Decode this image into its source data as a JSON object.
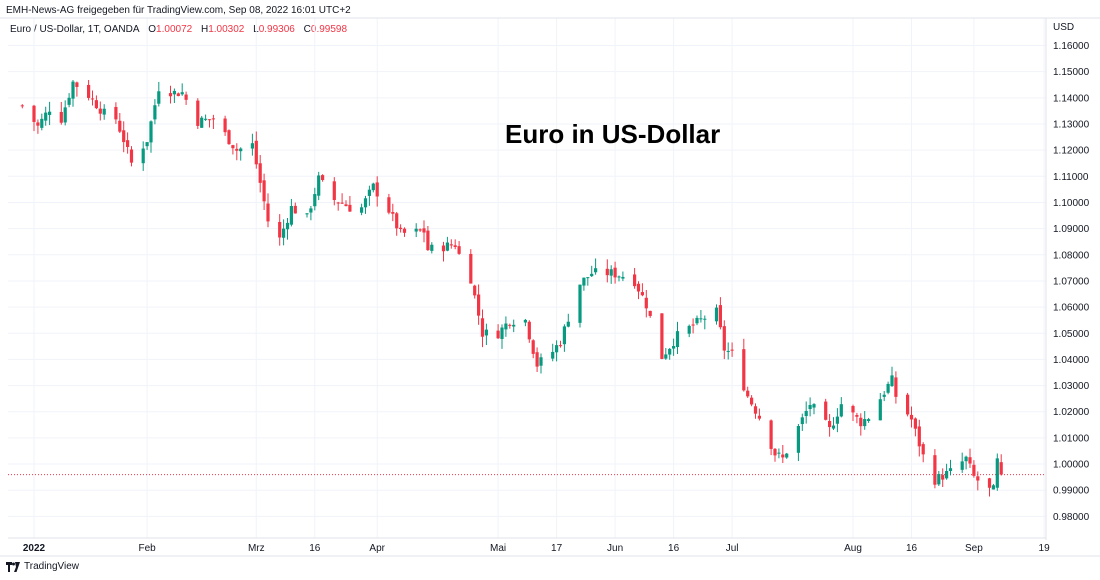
{
  "header": {
    "caption": "EMH-News-AG freigegeben für TradingView.com, Sep 08, 2022 16:01 UTC+2",
    "symbol": "Euro / US-Dollar, 1T, OANDA",
    "o_label": "O",
    "o_value": "1.00072",
    "h_label": "H",
    "h_value": "1.00302",
    "l_label": "L",
    "l_value": "0.99306",
    "c_label": "C",
    "c_value": "0.99598"
  },
  "footer": {
    "brand": "TradingView"
  },
  "colors": {
    "up": "#089981",
    "down": "#F23645",
    "grid": "#F0F3FA",
    "axis_text": "#131722",
    "price_line": "#F23645"
  },
  "icons": {
    "brand_logo": "tradingview-logo-icon"
  },
  "chart_data": {
    "type": "candlestick",
    "title": "Euro in US-Dollar",
    "currency_label": "USD",
    "y_ticks": [
      "1.16000",
      "1.15000",
      "1.14000",
      "1.13000",
      "1.12000",
      "1.11000",
      "1.10000",
      "1.09000",
      "1.08000",
      "1.07000",
      "1.06000",
      "1.05000",
      "1.04000",
      "1.03000",
      "1.02000",
      "1.01000",
      "1.00000",
      "0.99000",
      "0.98000"
    ],
    "ylim": [
      0.974,
      1.163
    ],
    "x_ticks": [
      {
        "label": "2022",
        "date": "2022-01-03",
        "bold": true
      },
      {
        "label": "Feb",
        "date": "2022-02-01",
        "bold": false
      },
      {
        "label": "Mrz",
        "date": "2022-03-01",
        "bold": false
      },
      {
        "label": "16",
        "date": "2022-03-16",
        "bold": false
      },
      {
        "label": "Apr",
        "date": "2022-04-01",
        "bold": false
      },
      {
        "label": "Mai",
        "date": "2022-05-02",
        "bold": false
      },
      {
        "label": "17",
        "date": "2022-05-17",
        "bold": false
      },
      {
        "label": "Jun",
        "date": "2022-06-01",
        "bold": false
      },
      {
        "label": "16",
        "date": "2022-06-16",
        "bold": false
      },
      {
        "label": "Jul",
        "date": "2022-07-01",
        "bold": false
      },
      {
        "label": "Aug",
        "date": "2022-08-01",
        "bold": false
      },
      {
        "label": "16",
        "date": "2022-08-16",
        "bold": false
      },
      {
        "label": "Sep",
        "date": "2022-09-01",
        "bold": false
      },
      {
        "label": "19",
        "date": "2022-09-19",
        "bold": false
      }
    ],
    "last_close": 0.99598,
    "close_keypoints": [
      [
        "2021-12-31",
        1.137
      ],
      [
        "2022-01-04",
        1.129
      ],
      [
        "2022-01-07",
        1.136
      ],
      [
        "2022-01-10",
        1.132
      ],
      [
        "2022-01-13",
        1.146
      ],
      [
        "2022-01-17",
        1.141
      ],
      [
        "2022-01-21",
        1.134
      ],
      [
        "2022-01-24",
        1.132
      ],
      [
        "2022-01-26",
        1.124
      ],
      [
        "2022-01-28",
        1.115
      ],
      [
        "2022-02-01",
        1.124
      ],
      [
        "2022-02-04",
        1.144
      ],
      [
        "2022-02-08",
        1.142
      ],
      [
        "2022-02-10",
        1.142
      ],
      [
        "2022-02-14",
        1.131
      ],
      [
        "2022-02-18",
        1.132
      ],
      [
        "2022-02-24",
        1.12
      ],
      [
        "2022-02-28",
        1.122
      ],
      [
        "2022-03-04",
        1.093
      ],
      [
        "2022-03-07",
        1.086
      ],
      [
        "2022-03-10",
        1.098
      ],
      [
        "2022-03-14",
        1.094
      ],
      [
        "2022-03-17",
        1.109
      ],
      [
        "2022-03-21",
        1.101
      ],
      [
        "2022-03-23",
        1.1
      ],
      [
        "2022-03-25",
        1.098
      ],
      [
        "2022-03-28",
        1.098
      ],
      [
        "2022-03-31",
        1.106
      ],
      [
        "2022-04-04",
        1.097
      ],
      [
        "2022-04-07",
        1.088
      ],
      [
        "2022-04-13",
        1.089
      ],
      [
        "2022-04-14",
        1.082
      ],
      [
        "2022-04-21",
        1.084
      ],
      [
        "2022-04-22",
        1.08
      ],
      [
        "2022-04-25",
        1.071
      ],
      [
        "2022-04-28",
        1.05
      ],
      [
        "2022-05-02",
        1.05
      ],
      [
        "2022-05-05",
        1.055
      ],
      [
        "2022-05-09",
        1.055
      ],
      [
        "2022-05-12",
        1.038
      ],
      [
        "2022-05-16",
        1.043
      ],
      [
        "2022-05-18",
        1.047
      ],
      [
        "2022-05-20",
        1.056
      ],
      [
        "2022-05-23",
        1.069
      ],
      [
        "2022-05-26",
        1.073
      ],
      [
        "2022-05-31",
        1.073
      ],
      [
        "2022-06-03",
        1.072
      ],
      [
        "2022-06-06",
        1.07
      ],
      [
        "2022-06-09",
        1.061
      ],
      [
        "2022-06-13",
        1.041
      ],
      [
        "2022-06-15",
        1.045
      ],
      [
        "2022-06-17",
        1.049
      ],
      [
        "2022-06-21",
        1.053
      ],
      [
        "2022-06-24",
        1.056
      ],
      [
        "2022-06-27",
        1.058
      ],
      [
        "2022-06-29",
        1.044
      ],
      [
        "2022-07-01",
        1.042
      ],
      [
        "2022-07-05",
        1.026
      ],
      [
        "2022-07-08",
        1.018
      ],
      [
        "2022-07-12",
        1.004
      ],
      [
        "2022-07-14",
        1.002
      ],
      [
        "2022-07-18",
        1.014
      ],
      [
        "2022-07-21",
        1.023
      ],
      [
        "2022-07-26",
        1.013
      ],
      [
        "2022-07-29",
        1.023
      ],
      [
        "2022-08-03",
        1.016
      ],
      [
        "2022-08-05",
        1.018
      ],
      [
        "2022-08-10",
        1.03
      ],
      [
        "2022-08-11",
        1.032
      ],
      [
        "2022-08-12",
        1.026
      ],
      [
        "2022-08-16",
        1.017
      ],
      [
        "2022-08-19",
        1.003
      ],
      [
        "2022-08-22",
        0.994
      ],
      [
        "2022-08-26",
        0.997
      ],
      [
        "2022-08-30",
        1.002
      ],
      [
        "2022-09-01",
        0.995
      ],
      [
        "2022-09-05",
        0.99
      ],
      [
        "2022-09-06",
        0.99
      ],
      [
        "2022-09-07",
        1.001
      ],
      [
        "2022-09-08",
        0.99598
      ]
    ]
  }
}
